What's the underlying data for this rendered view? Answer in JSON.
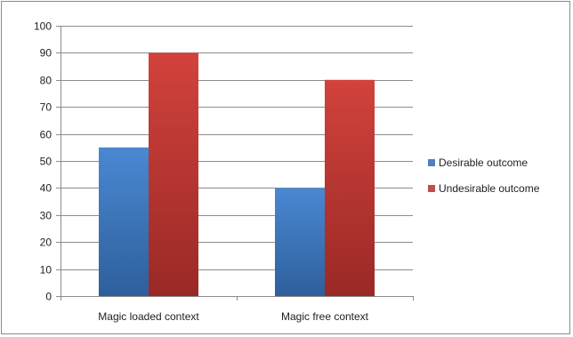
{
  "chart_data": {
    "type": "bar",
    "categories": [
      "Magic loaded context",
      "Magic free context"
    ],
    "series": [
      {
        "name": "Desirable outcome",
        "values": [
          55,
          40
        ],
        "color": "#4f81bd"
      },
      {
        "name": "Undesirable outcome",
        "values": [
          90,
          80
        ],
        "color": "#c0504d"
      }
    ],
    "ylim": [
      0,
      100
    ],
    "yticks": [
      0,
      10,
      20,
      30,
      40,
      50,
      60,
      70,
      80,
      90,
      100
    ],
    "grid": true,
    "legend_position": "right"
  }
}
